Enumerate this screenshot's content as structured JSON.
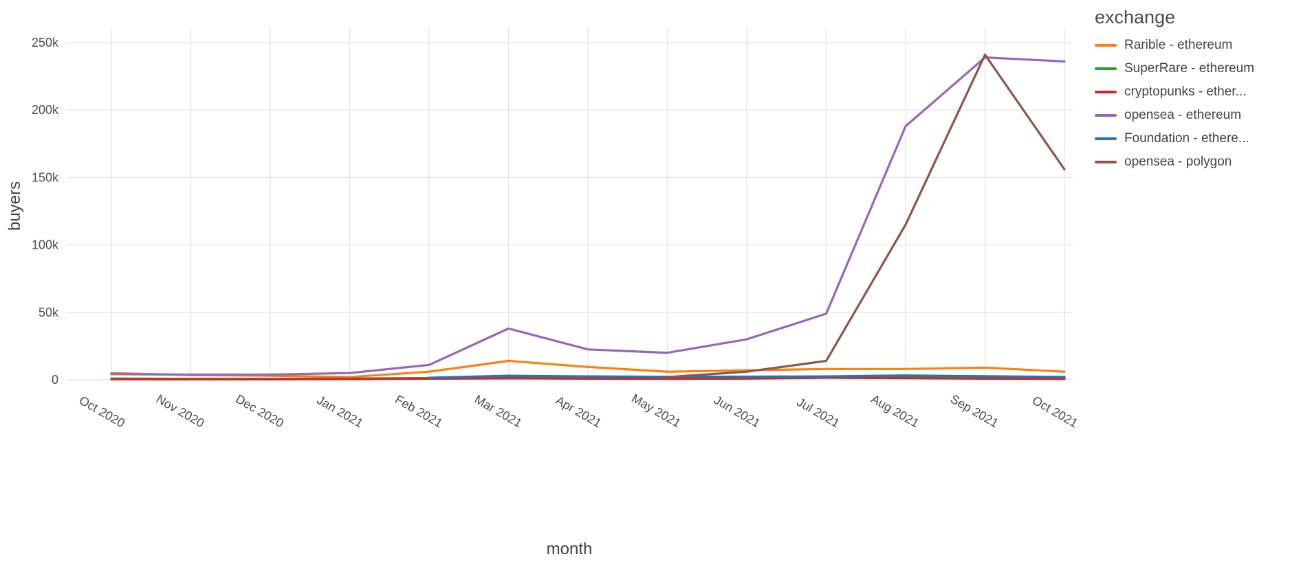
{
  "chart_data": {
    "type": "line",
    "title": "",
    "xlabel": "month",
    "ylabel": "buyers",
    "legend_title": "exchange",
    "legend_position": "top-right",
    "grid": true,
    "background": "#ffffff",
    "gridline_color": "#e6e6e6",
    "x": [
      "Oct 2020",
      "Nov 2020",
      "Dec 2020",
      "Jan 2021",
      "Feb 2021",
      "Mar 2021",
      "Apr 2021",
      "May 2021",
      "Jun 2021",
      "Jul 2021",
      "Aug 2021",
      "Sep 2021",
      "Oct 2021"
    ],
    "y_ticks": [
      0,
      50000,
      100000,
      150000,
      200000,
      250000
    ],
    "y_tick_labels": [
      "0",
      "50k",
      "100k",
      "150k",
      "200k",
      "250k"
    ],
    "ylim": [
      0,
      255000
    ],
    "series": [
      {
        "name": "Rarible - ethereum",
        "color": "#ff7f0e",
        "values": [
          5000,
          3500,
          3000,
          2000,
          6000,
          14000,
          9500,
          6000,
          7000,
          8000,
          8000,
          9000,
          6000
        ]
      },
      {
        "name": "SuperRare - ethereum",
        "color": "#2ca02c",
        "values": [
          900,
          700,
          700,
          900,
          1300,
          1600,
          1300,
          1200,
          1300,
          1600,
          2600,
          1600,
          1200
        ]
      },
      {
        "name": "cryptopunks - ether...",
        "color": "#d62728",
        "values": [
          400,
          300,
          300,
          500,
          800,
          1100,
          800,
          700,
          900,
          1500,
          1200,
          800,
          600
        ]
      },
      {
        "name": "opensea - ethereum",
        "color": "#9467bd",
        "values": [
          4200,
          3800,
          3800,
          5000,
          11000,
          38000,
          22500,
          20000,
          30000,
          49000,
          188000,
          239000,
          236000
        ]
      },
      {
        "name": "Foundation - ethere...",
        "color": "#1f77b4",
        "values": [
          null,
          null,
          null,
          null,
          1500,
          3000,
          2500,
          2200,
          2300,
          2500,
          3200,
          2600,
          2100
        ]
      },
      {
        "name": "opensea - polygon",
        "color": "#8c564b",
        "values": [
          null,
          null,
          null,
          null,
          null,
          null,
          null,
          2000,
          6000,
          14000,
          115000,
          241000,
          156000
        ]
      }
    ]
  }
}
